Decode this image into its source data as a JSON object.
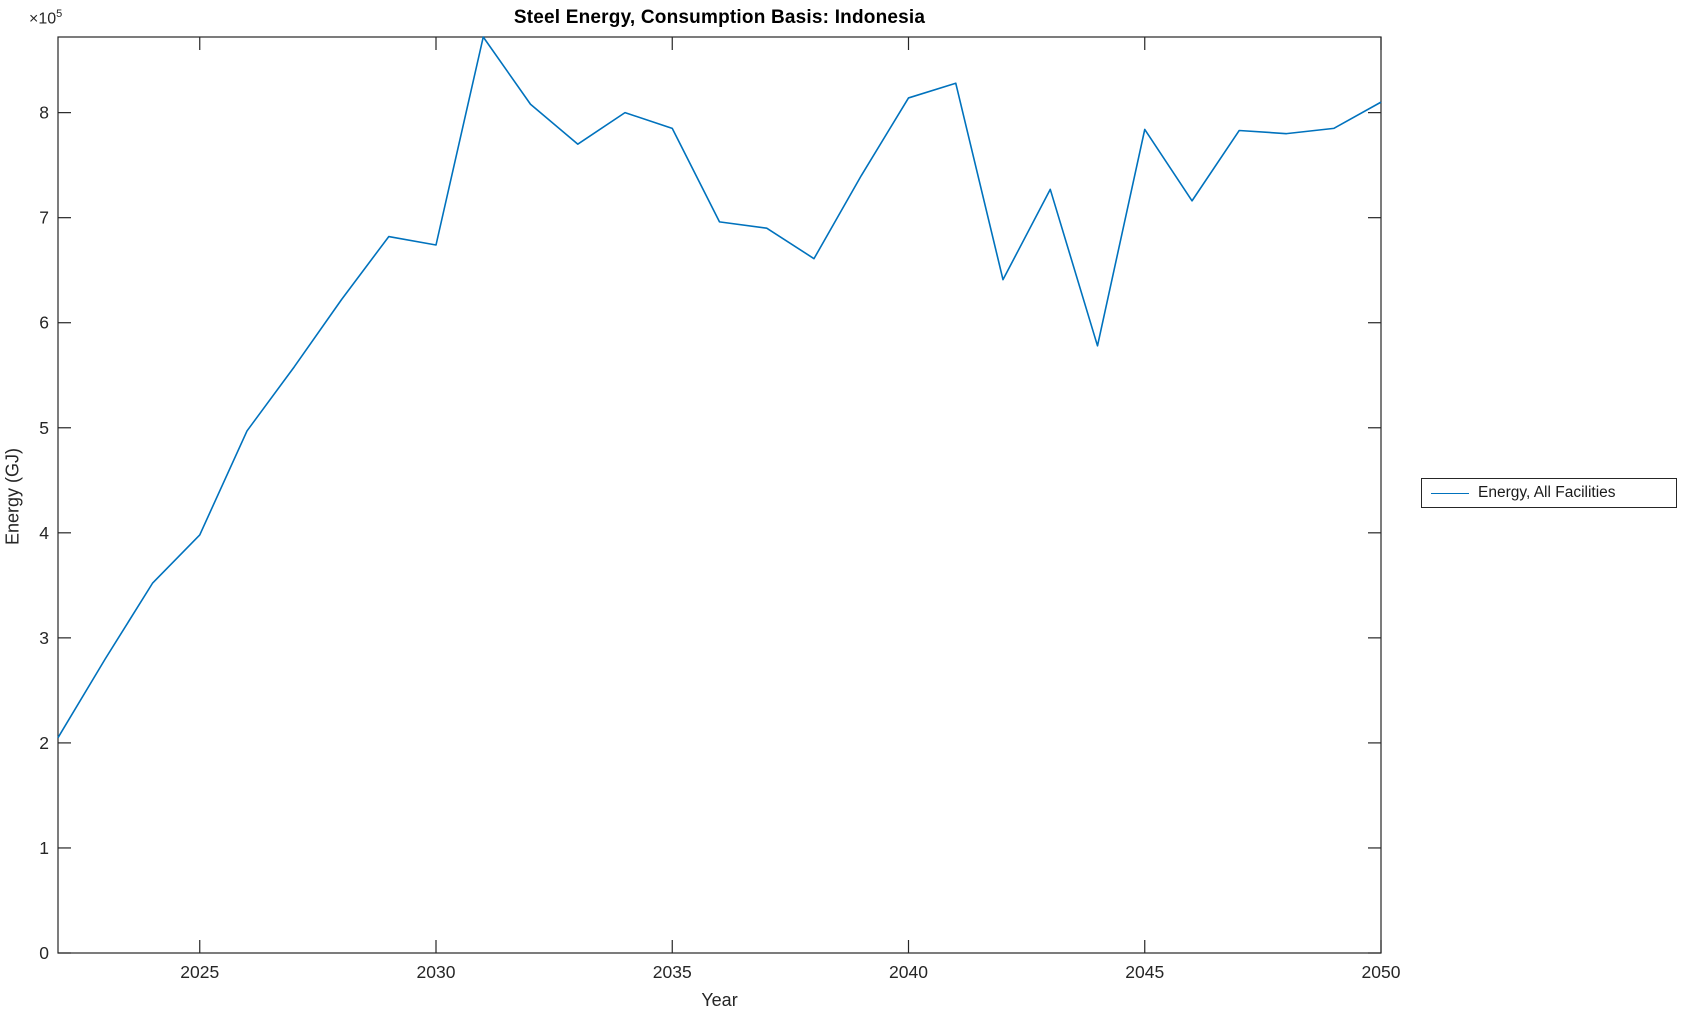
{
  "title": "Steel Energy, Consumption Basis: Indonesia",
  "xlabel": "Year",
  "ylabel": "Energy (GJ)",
  "y_multiplier": {
    "times": "×10",
    "exp": "5"
  },
  "legend": {
    "label": "Energy, All Facilities"
  },
  "colors": {
    "line": "#0072BD",
    "axis": "#262626",
    "tick_text": "#262626",
    "title_text": "#000000",
    "background": "#ffffff"
  },
  "chart_data": {
    "type": "line",
    "title": "Steel Energy, Consumption Basis: Indonesia",
    "xlabel": "Year",
    "ylabel": "Energy (GJ)",
    "grid": false,
    "legend_position": "right-outside",
    "xlim": [
      2022,
      2050
    ],
    "ylim": [
      0,
      872000
    ],
    "x_ticks": [
      2025,
      2030,
      2035,
      2040,
      2045,
      2050
    ],
    "x_tick_labels": [
      "2025",
      "2030",
      "2035",
      "2040",
      "2045",
      "2050"
    ],
    "y_ticks": [
      0,
      100000,
      200000,
      300000,
      400000,
      500000,
      600000,
      700000,
      800000
    ],
    "y_tick_labels": [
      "0",
      "1",
      "2",
      "3",
      "4",
      "5",
      "6",
      "7",
      "8"
    ],
    "x": [
      2022,
      2023,
      2024,
      2025,
      2026,
      2027,
      2028,
      2029,
      2030,
      2031,
      2032,
      2033,
      2034,
      2035,
      2036,
      2037,
      2038,
      2039,
      2040,
      2041,
      2042,
      2043,
      2044,
      2045,
      2046,
      2047,
      2048,
      2049,
      2050
    ],
    "series": [
      {
        "name": "Energy, All Facilities",
        "values": [
          205000,
          280000,
          352000,
          398000,
          497000,
          558000,
          622000,
          682000,
          674000,
          872000,
          808000,
          770000,
          800000,
          785000,
          696000,
          690000,
          661000,
          740000,
          814000,
          828000,
          641000,
          727000,
          578000,
          784000,
          716000,
          783000,
          780000,
          785000,
          810000
        ]
      }
    ]
  }
}
